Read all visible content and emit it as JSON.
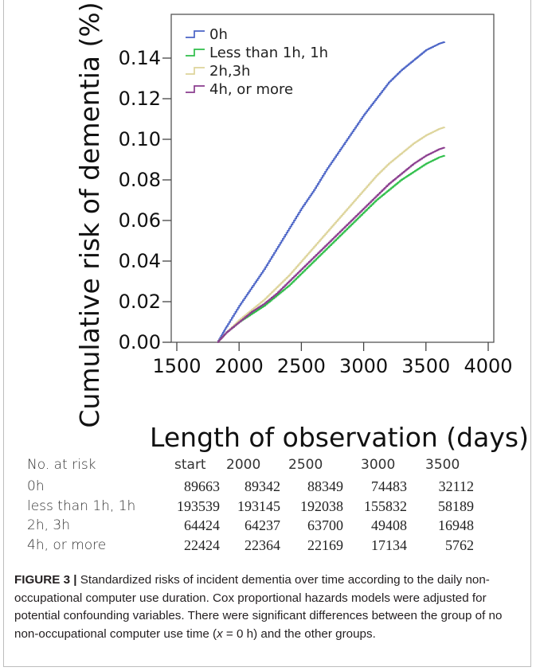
{
  "chart_data": {
    "type": "line",
    "title": "",
    "xlabel": "Length of observation (days)",
    "ylabel": "Cumulative risk of dementia (%)",
    "xlim": [
      1500,
      4000
    ],
    "ylim": [
      0.0,
      0.14
    ],
    "xticks": [
      "1500",
      "2000",
      "2500",
      "3000",
      "3500",
      "4000"
    ],
    "yticks": [
      "0.00",
      "0.02",
      "0.04",
      "0.06",
      "0.08",
      "0.10",
      "0.12",
      "0.14"
    ],
    "grid": false,
    "legend_position": "top-left",
    "series": [
      {
        "name": "0h",
        "color": "#4a63c6",
        "x": [
          1825,
          1900,
          2000,
          2100,
          2200,
          2300,
          2400,
          2500,
          2600,
          2700,
          2800,
          2900,
          3000,
          3100,
          3200,
          3300,
          3400,
          3500,
          3600,
          3650
        ],
        "y": [
          0.0,
          0.008,
          0.018,
          0.027,
          0.036,
          0.046,
          0.056,
          0.066,
          0.075,
          0.085,
          0.094,
          0.103,
          0.112,
          0.12,
          0.128,
          0.134,
          0.139,
          0.144,
          0.147,
          0.148
        ]
      },
      {
        "name": "Less than 1h, 1h",
        "color": "#2fbf4a",
        "x": [
          1825,
          1900,
          2000,
          2100,
          2200,
          2300,
          2400,
          2500,
          2600,
          2700,
          2800,
          2900,
          3000,
          3100,
          3200,
          3300,
          3400,
          3500,
          3600,
          3650
        ],
        "y": [
          0.0,
          0.005,
          0.01,
          0.014,
          0.018,
          0.023,
          0.028,
          0.034,
          0.04,
          0.046,
          0.052,
          0.058,
          0.064,
          0.07,
          0.075,
          0.08,
          0.084,
          0.088,
          0.091,
          0.092
        ]
      },
      {
        "name": "2h,3h",
        "color": "#ddd49a",
        "x": [
          1825,
          1900,
          2000,
          2100,
          2200,
          2300,
          2400,
          2500,
          2600,
          2700,
          2800,
          2900,
          3000,
          3100,
          3200,
          3300,
          3400,
          3500,
          3600,
          3650
        ],
        "y": [
          0.0,
          0.005,
          0.011,
          0.016,
          0.021,
          0.027,
          0.033,
          0.04,
          0.047,
          0.054,
          0.061,
          0.068,
          0.075,
          0.082,
          0.088,
          0.093,
          0.098,
          0.102,
          0.105,
          0.106
        ]
      },
      {
        "name": "4h, or more",
        "color": "#8a3c8e",
        "x": [
          1825,
          1900,
          2000,
          2100,
          2200,
          2300,
          2400,
          2500,
          2600,
          2700,
          2800,
          2900,
          3000,
          3100,
          3200,
          3300,
          3400,
          3500,
          3600,
          3650
        ],
        "y": [
          0.0,
          0.005,
          0.01,
          0.015,
          0.019,
          0.024,
          0.03,
          0.036,
          0.042,
          0.048,
          0.054,
          0.06,
          0.066,
          0.072,
          0.078,
          0.083,
          0.088,
          0.092,
          0.095,
          0.096
        ]
      }
    ]
  },
  "risk_table": {
    "title": "No. at risk",
    "columns": [
      "start",
      "2000",
      "2500",
      "3000",
      "3500"
    ],
    "rows": [
      {
        "label": "0h",
        "values": [
          "89663",
          "89342",
          "88349",
          "74483",
          "32112"
        ]
      },
      {
        "label": "less than 1h, 1h",
        "values": [
          "193539",
          "193145",
          "192038",
          "155832",
          "58189"
        ]
      },
      {
        "label": "2h, 3h",
        "values": [
          "64424",
          "64237",
          "63700",
          "49408",
          "16948"
        ]
      },
      {
        "label": "4h, or more",
        "values": [
          "22424",
          "22364",
          "22169",
          "17134",
          "5762"
        ]
      }
    ]
  },
  "caption": {
    "label": "FIGURE 3 |",
    "text_1": " Standardized risks of incident dementia over time according to the daily non-occupational computer use duration. Cox proportional hazards models were adjusted for potential confounding variables. There were significant differences between the group of no non-occupational computer use time (",
    "math_var": "x",
    "text_2": " = 0 h) and the other groups."
  }
}
